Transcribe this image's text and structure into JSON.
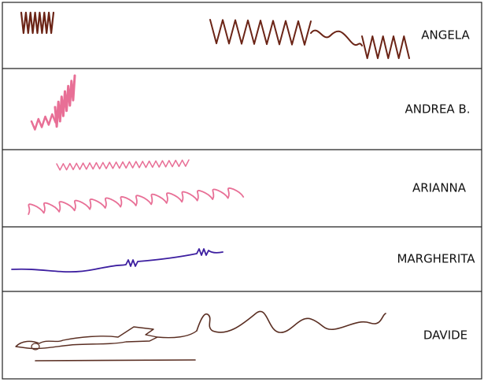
{
  "rows": [
    {
      "name": "ANGELA"
    },
    {
      "name": "ANDREA B."
    },
    {
      "name": "ARIANNA"
    },
    {
      "name": "MARGHERITA"
    },
    {
      "name": "DAVIDE"
    }
  ]
}
